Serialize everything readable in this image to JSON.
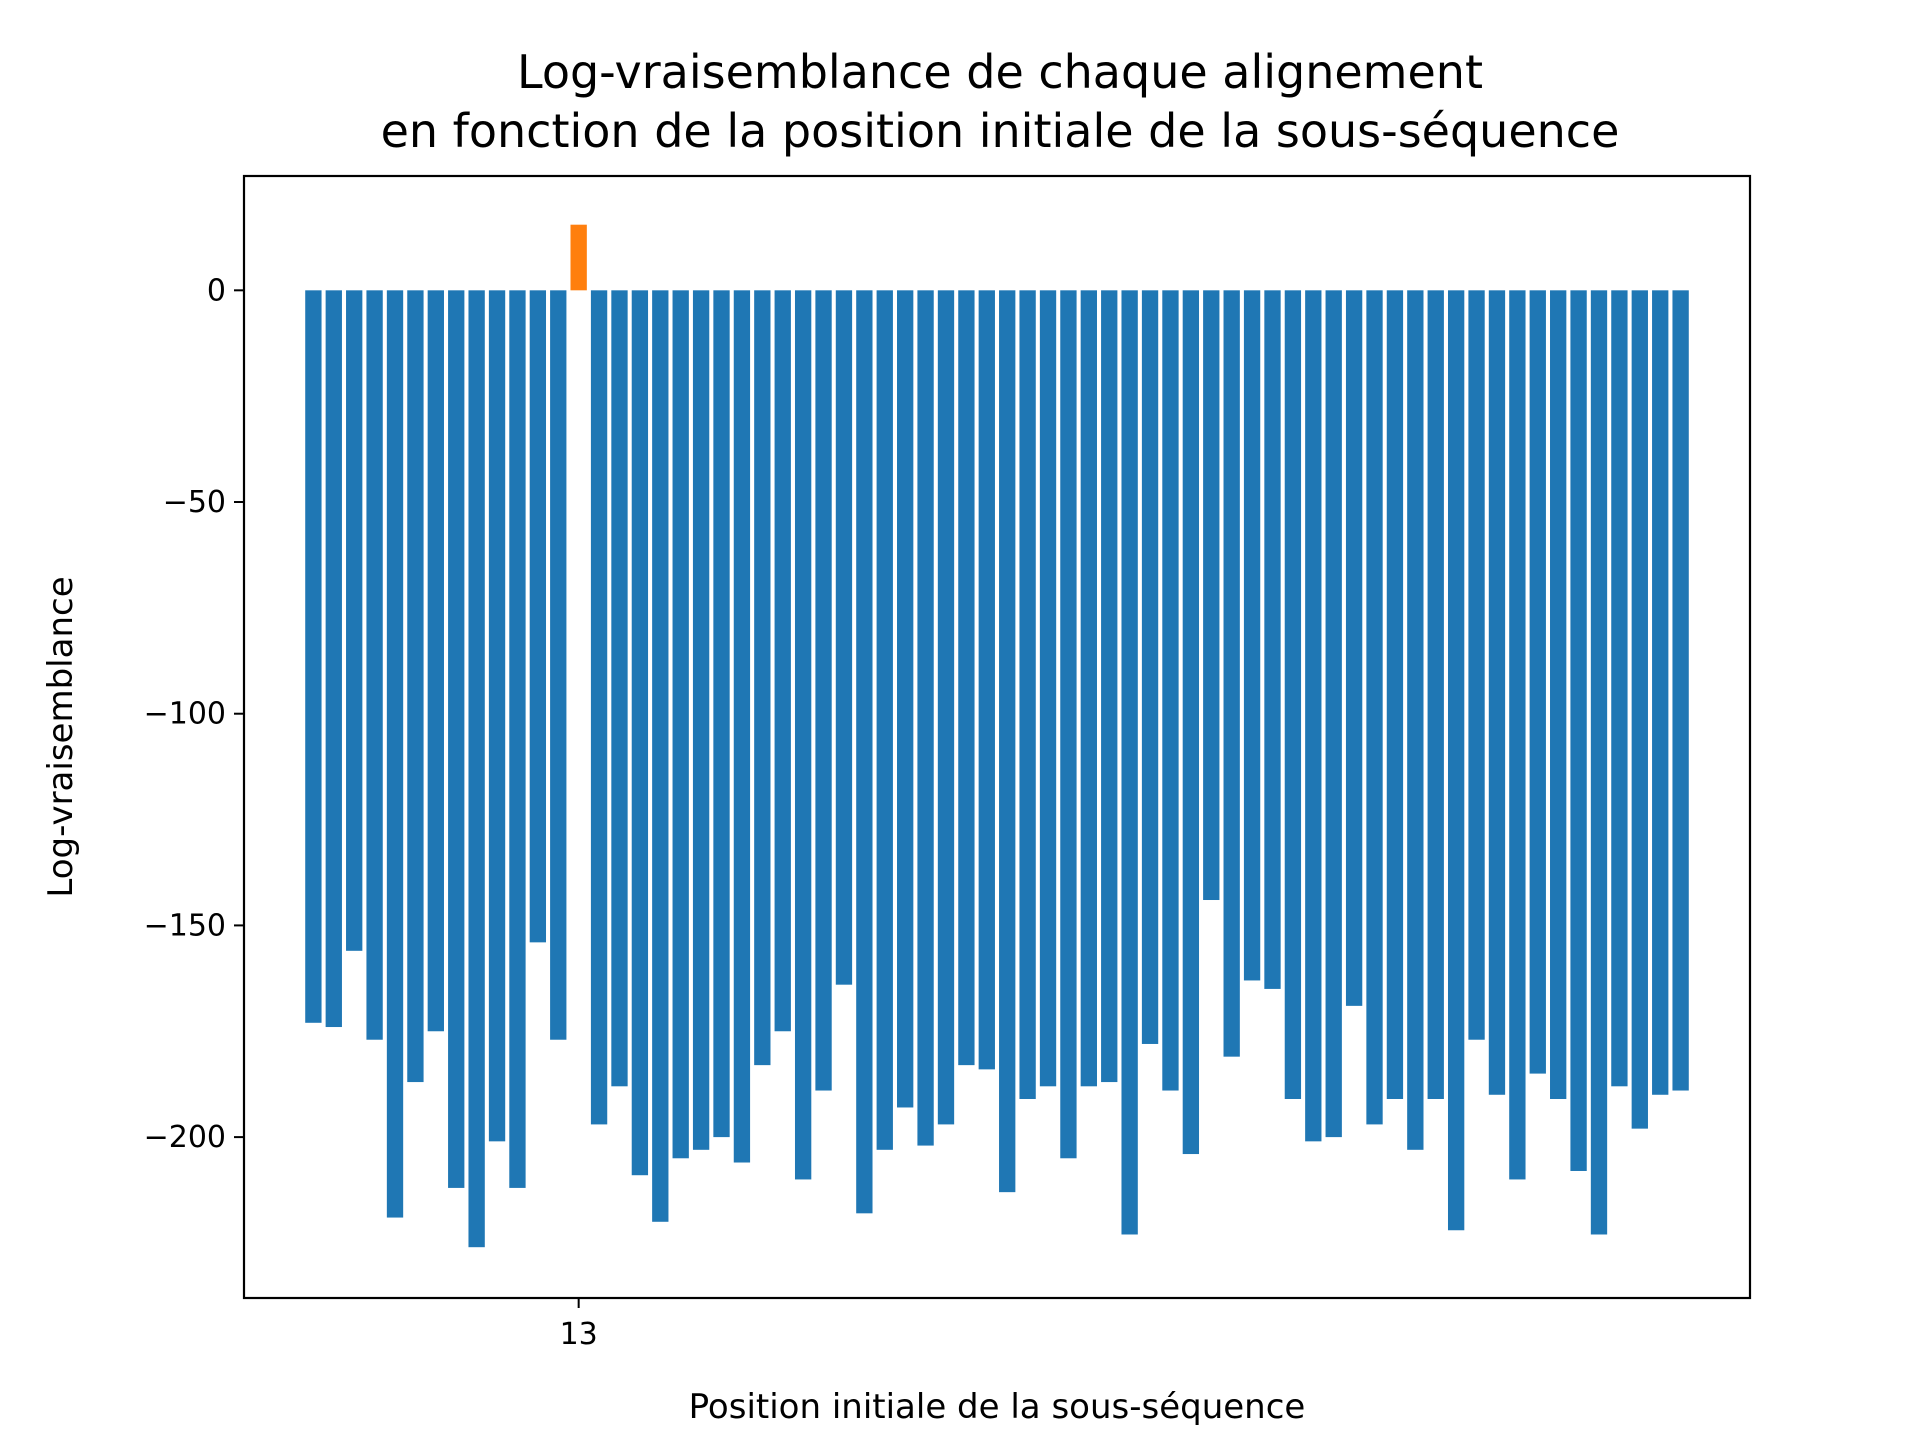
{
  "chart_data": {
    "type": "bar",
    "title": [
      "Log-vraisemblance de chaque alignement",
      "en fonction de la position initiale de la sous-séquence"
    ],
    "xlabel": "Position initiale de la sous-séquence",
    "ylabel": "Log-vraisemblance",
    "xlim": [
      -3.4,
      70.4
    ],
    "ylim": [
      -238,
      27
    ],
    "x_ticks": [
      13
    ],
    "y_ticks": [
      0,
      -50,
      -100,
      -150,
      -200
    ],
    "highlight_index": 13,
    "colors": {
      "default": "#1f77b4",
      "highlight": "#ff7f0e"
    },
    "x": [
      0,
      1,
      2,
      3,
      4,
      5,
      6,
      7,
      8,
      9,
      10,
      11,
      12,
      13,
      14,
      15,
      16,
      17,
      18,
      19,
      20,
      21,
      22,
      23,
      24,
      25,
      26,
      27,
      28,
      29,
      30,
      31,
      32,
      33,
      34,
      35,
      36,
      37,
      38,
      39,
      40,
      41,
      42,
      43,
      44,
      45,
      46,
      47,
      48,
      49,
      50,
      51,
      52,
      53,
      54,
      55,
      56,
      57,
      58,
      59,
      60,
      61,
      62,
      63,
      64,
      65,
      66,
      67
    ],
    "values": [
      -173,
      -174,
      -156,
      -177,
      -219,
      -187,
      -175,
      -212,
      -226,
      -201,
      -212,
      -154,
      -177,
      15.5,
      -197,
      -188,
      -209,
      -220,
      -205,
      -203,
      -200,
      -206,
      -183,
      -175,
      -210,
      -189,
      -164,
      -218,
      -203,
      -193,
      -202,
      -197,
      -183,
      -184,
      -213,
      -191,
      -188,
      -205,
      -188,
      -187,
      -223,
      -178,
      -189,
      -204,
      -144,
      -181,
      -163,
      -165,
      -191,
      -201,
      -200,
      -169,
      -197,
      -191,
      -203,
      -191,
      -222,
      -177,
      -190,
      -210,
      -185,
      -191,
      -208,
      -223,
      -188,
      -198,
      -190,
      -189
    ]
  }
}
